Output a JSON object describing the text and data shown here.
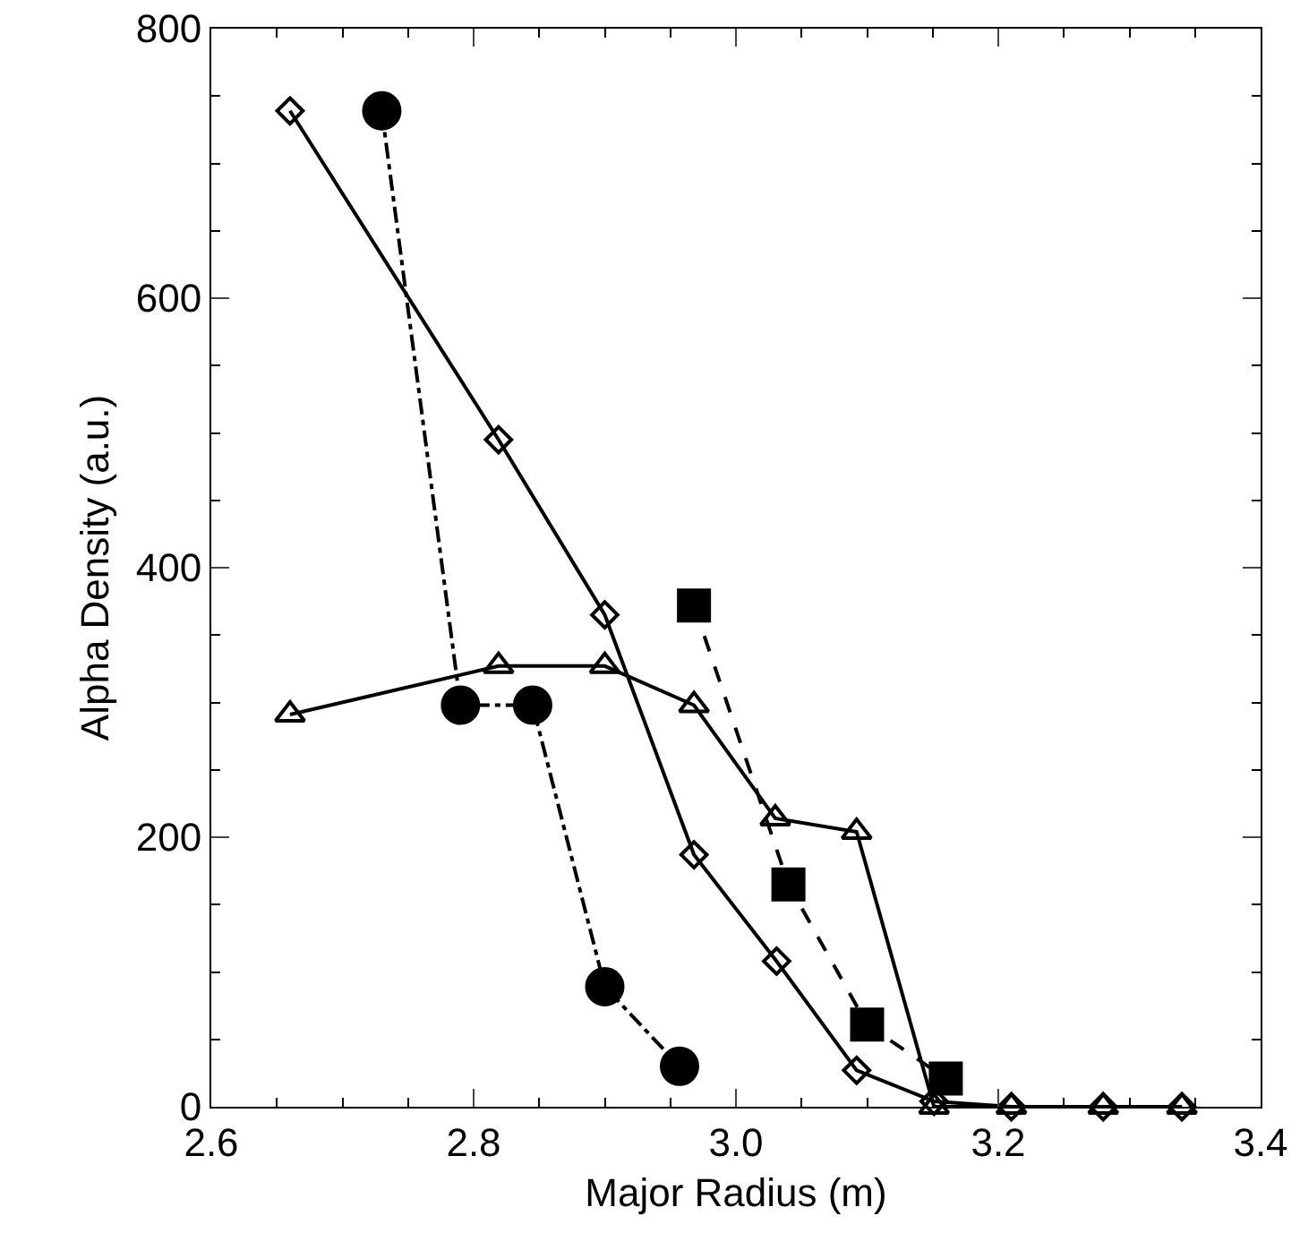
{
  "chart_data": {
    "type": "line",
    "xlabel": "Major Radius (m)",
    "ylabel": "Alpha Density (a.u.)",
    "xlim": [
      2.6,
      3.4
    ],
    "xticks": [
      {
        "value": 2.6,
        "label": "2.6"
      },
      {
        "value": 2.8,
        "label": "2.8"
      },
      {
        "value": 3,
        "label": "3.0"
      },
      {
        "value": 3.2,
        "label": "3.2"
      },
      {
        "value": 3.4,
        "label": "3.4"
      }
    ],
    "ylim": [
      0,
      800
    ],
    "yticks": [
      {
        "value": 0,
        "label": "0"
      },
      {
        "value": 200,
        "label": "200"
      },
      {
        "value": 400,
        "label": "400"
      },
      {
        "value": 600,
        "label": "600"
      },
      {
        "value": 800,
        "label": "800"
      }
    ],
    "grid": false,
    "series": [
      {
        "color": "#000000",
        "marker": "diamond",
        "line_style": "solid",
        "x": [
          2.66,
          2.819,
          2.9,
          2.968,
          3.031,
          3.092,
          3.151,
          3.21,
          3.28,
          3.34
        ],
        "values": [
          739,
          495,
          365,
          187,
          108,
          27,
          4,
          0,
          0,
          0
        ]
      },
      {
        "color": "#000000",
        "marker": "triangle",
        "line_style": "solid",
        "x": [
          2.66,
          2.819,
          2.9,
          2.968,
          3.03,
          3.092,
          3.151,
          3.21,
          3.28,
          3.34
        ],
        "values": [
          291,
          327,
          327,
          298,
          214,
          204,
          0,
          0,
          0,
          0
        ]
      },
      {
        "color": "#000000",
        "marker": "circle",
        "line_style": "dashdot",
        "x": [
          2.73,
          2.79,
          2.845,
          2.9,
          2.957
        ],
        "values": [
          739,
          298,
          298,
          89,
          30
        ]
      },
      {
        "color": "#000000",
        "marker": "square",
        "line_style": "dashed",
        "x": [
          2.968,
          3.04,
          3.1,
          3.16
        ],
        "values": [
          372,
          165,
          61,
          21
        ]
      }
    ]
  }
}
